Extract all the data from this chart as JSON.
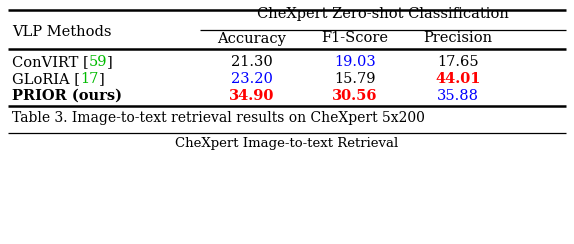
{
  "title_main": "CheXpert Zero-shot Classification",
  "col_header_left": "VLP Methods",
  "col_headers": [
    "Accuracy",
    "F1-Score",
    "Precision"
  ],
  "rows": [
    {
      "method_parts": [
        {
          "text": "ConVIRT [",
          "color": "#000000",
          "bold": false
        },
        {
          "text": "59",
          "color": "#00bb00",
          "bold": false
        },
        {
          "text": "]",
          "color": "#000000",
          "bold": false
        }
      ],
      "values": [
        "21.30",
        "19.03",
        "17.65"
      ],
      "value_colors": [
        "#000000",
        "#0000ff",
        "#000000"
      ],
      "value_bold": [
        false,
        false,
        false
      ]
    },
    {
      "method_parts": [
        {
          "text": "GLoRIA [",
          "color": "#000000",
          "bold": false
        },
        {
          "text": "17",
          "color": "#00bb00",
          "bold": false
        },
        {
          "text": "]",
          "color": "#000000",
          "bold": false
        }
      ],
      "values": [
        "23.20",
        "15.79",
        "44.01"
      ],
      "value_colors": [
        "#0000ff",
        "#000000",
        "#ff0000"
      ],
      "value_bold": [
        false,
        false,
        true
      ]
    },
    {
      "method_parts": [
        {
          "text": "PRIOR (ours)",
          "color": "#000000",
          "bold": true
        }
      ],
      "values": [
        "34.90",
        "30.56",
        "35.88"
      ],
      "value_colors": [
        "#ff0000",
        "#ff0000",
        "#0000ff"
      ],
      "value_bold": [
        true,
        true,
        false
      ]
    }
  ],
  "caption": "Table 3. Image-to-text retrieval results on CheXpert 5x200",
  "caption2": "CheXpert Image-to-text Retrieval",
  "background_color": "#ffffff",
  "font_size": 10.5,
  "caption_font_size": 10.0,
  "caption2_font_size": 9.5
}
